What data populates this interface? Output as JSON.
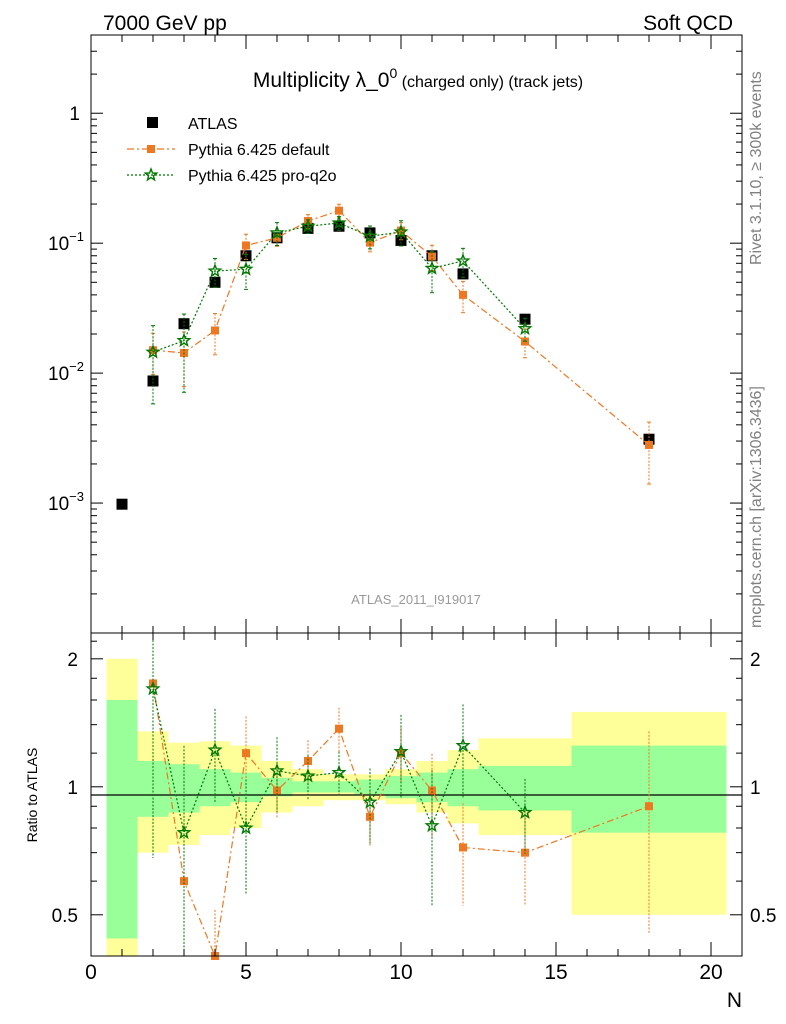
{
  "header": {
    "left": "7000 GeV pp",
    "right": "Soft QCD"
  },
  "side_labels": {
    "rivet": "Rivet 3.1.10, ≥ 300k events",
    "mcplots": "mcplots.cern.ch [arXiv:1306.3436]"
  },
  "chart_data": {
    "type": "scatter",
    "title_main": "Multiplicity λ_0",
    "title_sup": "0",
    "title_suffix": " (charged only) (track jets)",
    "analysis_id": "ATLAS_2011_I919017",
    "xlabel": "N",
    "ylabel_ratio": "Ratio to ATLAS",
    "xlim": [
      0,
      21
    ],
    "ylim": [
      0.0001,
      4
    ],
    "ratio_ylim": [
      0.4,
      2.3
    ],
    "log_y": true,
    "grid": false,
    "legend_position": "top-left",
    "x_ticks": [
      "0",
      "5",
      "10",
      "15",
      "20"
    ],
    "y_ticks": [
      {
        "base": "10",
        "exp": "−3",
        "value": 0.001
      },
      {
        "base": "10",
        "exp": "−2",
        "value": 0.01
      },
      {
        "base": "10",
        "exp": "−1",
        "value": 0.1
      },
      {
        "base": "1",
        "exp": "",
        "value": 1
      }
    ],
    "ratio_ticks": [
      "0.5",
      "1",
      "2"
    ],
    "series": [
      {
        "name": "ATLAS",
        "color": "#000000",
        "marker": "square",
        "x": [
          1,
          2,
          3,
          4,
          5,
          6,
          7,
          8,
          9,
          10,
          11,
          12,
          14,
          18
        ],
        "y": [
          0.00098,
          0.0087,
          0.024,
          0.05,
          0.08,
          0.11,
          0.13,
          0.135,
          0.12,
          0.105,
          0.08,
          0.058,
          0.026,
          0.0031
        ]
      },
      {
        "name": "Pythia 6.425 default",
        "color": "#ee7722",
        "marker": "square",
        "x": [
          2,
          3,
          4,
          5,
          6,
          7,
          8,
          9,
          10,
          11,
          12,
          14,
          18
        ],
        "y": [
          0.015,
          0.0143,
          0.0213,
          0.096,
          0.11,
          0.148,
          0.178,
          0.101,
          0.125,
          0.079,
          0.04,
          0.0175,
          0.0028
        ],
        "err": [
          0.35,
          0.45,
          0.35,
          0.22,
          0.14,
          0.12,
          0.12,
          0.15,
          0.15,
          0.22,
          0.27,
          0.25,
          0.5
        ],
        "ratio": [
          1.75,
          0.6,
          0.38,
          1.2,
          0.98,
          1.15,
          1.37,
          0.85,
          1.2,
          0.98,
          0.72,
          0.7,
          0.9
        ]
      },
      {
        "name": "Pythia 6.425 pro-q2o",
        "color": "#007700",
        "marker": "star",
        "x": [
          2,
          3,
          4,
          5,
          6,
          7,
          8,
          9,
          10,
          11,
          12,
          14
        ],
        "y": [
          0.0145,
          0.0178,
          0.061,
          0.063,
          0.12,
          0.135,
          0.143,
          0.113,
          0.122,
          0.064,
          0.073,
          0.022
        ],
        "err": [
          0.6,
          0.6,
          0.25,
          0.3,
          0.2,
          0.12,
          0.12,
          0.2,
          0.22,
          0.35,
          0.25,
          0.2
        ],
        "ratio": [
          1.7,
          0.78,
          1.22,
          0.8,
          1.09,
          1.06,
          1.08,
          0.92,
          1.21,
          0.81,
          1.25,
          0.87
        ]
      }
    ],
    "ratio_bands": [
      {
        "x0": 0.5,
        "x1": 1.5,
        "g_lo": 0.44,
        "g_hi": 1.6,
        "y_lo": 0.33,
        "y_hi": 2.0
      },
      {
        "x0": 1.5,
        "x1": 2.5,
        "g_lo": 0.85,
        "g_hi": 1.15,
        "y_lo": 0.7,
        "y_hi": 1.35
      },
      {
        "x0": 2.5,
        "x1": 3.5,
        "g_lo": 0.87,
        "g_hi": 1.13,
        "y_lo": 0.73,
        "y_hi": 1.27
      },
      {
        "x0": 3.5,
        "x1": 4.5,
        "g_lo": 0.9,
        "g_hi": 1.1,
        "y_lo": 0.77,
        "y_hi": 1.28
      },
      {
        "x0": 4.5,
        "x1": 5.5,
        "g_lo": 0.92,
        "g_hi": 1.08,
        "y_lo": 0.8,
        "y_hi": 1.25
      },
      {
        "x0": 5.5,
        "x1": 6.5,
        "g_lo": 0.95,
        "g_hi": 1.05,
        "y_lo": 0.87,
        "y_hi": 1.15
      },
      {
        "x0": 6.5,
        "x1": 7.5,
        "g_lo": 0.97,
        "g_hi": 1.03,
        "y_lo": 0.9,
        "y_hi": 1.1
      },
      {
        "x0": 7.5,
        "x1": 8.5,
        "g_lo": 0.97,
        "g_hi": 1.03,
        "y_lo": 0.93,
        "y_hi": 1.07
      },
      {
        "x0": 8.5,
        "x1": 9.5,
        "g_lo": 0.96,
        "g_hi": 1.04,
        "y_lo": 0.93,
        "y_hi": 1.07
      },
      {
        "x0": 9.5,
        "x1": 10.5,
        "g_lo": 0.94,
        "g_hi": 1.06,
        "y_lo": 0.91,
        "y_hi": 1.1
      },
      {
        "x0": 10.5,
        "x1": 11.5,
        "g_lo": 0.92,
        "g_hi": 1.08,
        "y_lo": 0.87,
        "y_hi": 1.15
      },
      {
        "x0": 11.5,
        "x1": 12.5,
        "g_lo": 0.9,
        "g_hi": 1.1,
        "y_lo": 0.82,
        "y_hi": 1.22
      },
      {
        "x0": 12.5,
        "x1": 15.5,
        "g_lo": 0.88,
        "g_hi": 1.12,
        "y_lo": 0.77,
        "y_hi": 1.3
      },
      {
        "x0": 15.5,
        "x1": 20.5,
        "g_lo": 0.78,
        "g_hi": 1.25,
        "y_lo": 0.5,
        "y_hi": 1.5
      }
    ]
  }
}
